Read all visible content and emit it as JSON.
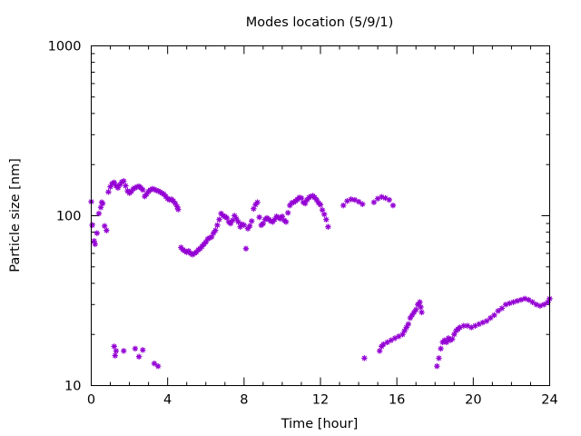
{
  "chart_data": {
    "type": "scatter",
    "title": "Modes location (5/9/1)",
    "xlabel": "Time [hour]",
    "ylabel": "Particle size [nm]",
    "xlim": [
      0,
      24
    ],
    "ylim": [
      10,
      1000
    ],
    "yscale": "log",
    "grid": false,
    "legend": "none",
    "x_ticks": [
      0,
      4,
      8,
      12,
      16,
      20,
      24
    ],
    "x_tick_labels": [
      "0",
      "4",
      "8",
      "12",
      "16",
      "20",
      "24"
    ],
    "y_ticks": [
      10,
      100,
      1000
    ],
    "y_tick_labels": [
      "10",
      "100",
      "1000"
    ],
    "color": "#9400d3",
    "series": [
      {
        "points": [
          [
            0.0,
            121
          ],
          [
            0.05,
            88
          ],
          [
            0.15,
            71
          ],
          [
            0.2,
            68
          ],
          [
            0.3,
            79
          ],
          [
            0.4,
            103
          ],
          [
            0.5,
            112
          ],
          [
            0.55,
            120
          ],
          [
            0.6,
            118
          ],
          [
            0.7,
            87
          ],
          [
            0.8,
            82
          ],
          [
            0.9,
            138
          ],
          [
            1.0,
            148
          ],
          [
            1.1,
            155
          ],
          [
            1.2,
            157
          ],
          [
            1.3,
            150
          ],
          [
            1.4,
            146
          ],
          [
            1.5,
            152
          ],
          [
            1.6,
            158
          ],
          [
            1.7,
            160
          ],
          [
            1.8,
            150
          ],
          [
            1.9,
            140
          ],
          [
            2.0,
            136
          ],
          [
            2.1,
            139
          ],
          [
            2.2,
            144
          ],
          [
            2.3,
            146
          ],
          [
            2.4,
            148
          ],
          [
            2.5,
            149
          ],
          [
            2.6,
            146
          ],
          [
            2.7,
            142
          ],
          [
            2.8,
            130
          ],
          [
            2.9,
            134
          ],
          [
            3.0,
            139
          ],
          [
            3.1,
            142
          ],
          [
            3.2,
            144
          ],
          [
            3.3,
            143
          ],
          [
            3.4,
            141
          ],
          [
            3.5,
            140
          ],
          [
            3.6,
            138
          ],
          [
            3.7,
            136
          ],
          [
            3.8,
            134
          ],
          [
            3.9,
            130
          ],
          [
            4.0,
            126
          ],
          [
            4.1,
            124
          ],
          [
            4.2,
            125
          ],
          [
            4.3,
            122
          ],
          [
            4.4,
            118
          ],
          [
            4.5,
            113
          ],
          [
            4.55,
            109
          ],
          [
            4.7,
            65
          ],
          [
            4.8,
            63
          ],
          [
            4.9,
            62
          ],
          [
            5.0,
            61
          ],
          [
            5.1,
            62
          ],
          [
            5.2,
            60
          ],
          [
            5.3,
            59
          ],
          [
            5.4,
            60
          ],
          [
            5.5,
            61
          ],
          [
            5.6,
            63
          ],
          [
            5.7,
            64
          ],
          [
            5.8,
            66
          ],
          [
            5.9,
            68
          ],
          [
            6.0,
            70
          ],
          [
            6.1,
            73
          ],
          [
            6.2,
            74
          ],
          [
            6.3,
            75
          ],
          [
            6.4,
            79
          ],
          [
            6.5,
            82
          ],
          [
            6.6,
            88
          ],
          [
            6.7,
            95
          ],
          [
            6.8,
            103
          ],
          [
            6.9,
            100
          ],
          [
            7.0,
            99
          ],
          [
            7.1,
            97
          ],
          [
            7.2,
            92
          ],
          [
            7.3,
            90
          ],
          [
            7.4,
            94
          ],
          [
            7.5,
            100
          ],
          [
            7.6,
            96
          ],
          [
            7.7,
            92
          ],
          [
            7.8,
            86
          ],
          [
            7.9,
            89
          ],
          [
            8.0,
            88
          ],
          [
            8.1,
            64
          ],
          [
            8.2,
            84
          ],
          [
            8.3,
            87
          ],
          [
            8.4,
            93
          ],
          [
            8.5,
            110
          ],
          [
            8.6,
            116
          ],
          [
            8.7,
            120
          ],
          [
            8.8,
            98
          ],
          [
            8.9,
            88
          ],
          [
            9.0,
            90
          ],
          [
            9.1,
            95
          ],
          [
            9.2,
            97
          ],
          [
            9.3,
            95
          ],
          [
            9.4,
            93
          ],
          [
            9.5,
            92
          ],
          [
            9.6,
            95
          ],
          [
            9.7,
            99
          ],
          [
            9.8,
            98
          ],
          [
            9.9,
            96
          ],
          [
            10.0,
            99
          ],
          [
            10.1,
            94
          ],
          [
            10.2,
            92
          ],
          [
            10.3,
            104
          ],
          [
            10.4,
            115
          ],
          [
            10.5,
            119
          ],
          [
            10.6,
            120
          ],
          [
            10.7,
            122
          ],
          [
            10.8,
            125
          ],
          [
            10.9,
            128
          ],
          [
            11.0,
            127
          ],
          [
            11.1,
            120
          ],
          [
            11.2,
            118
          ],
          [
            11.3,
            124
          ],
          [
            11.4,
            128
          ],
          [
            11.5,
            130
          ],
          [
            11.6,
            131
          ],
          [
            11.7,
            128
          ],
          [
            11.8,
            124
          ],
          [
            11.9,
            119
          ],
          [
            12.0,
            116
          ],
          [
            12.1,
            108
          ],
          [
            12.2,
            102
          ],
          [
            12.3,
            95
          ],
          [
            12.4,
            86
          ],
          [
            13.2,
            115
          ],
          [
            13.4,
            122
          ],
          [
            13.6,
            125
          ],
          [
            13.8,
            124
          ],
          [
            14.0,
            121
          ],
          [
            14.2,
            117
          ],
          [
            14.8,
            120
          ],
          [
            15.0,
            126
          ],
          [
            15.2,
            129
          ],
          [
            15.4,
            127
          ],
          [
            15.6,
            124
          ],
          [
            15.8,
            115
          ]
        ]
      },
      {
        "points": [
          [
            1.2,
            17
          ],
          [
            1.25,
            15
          ],
          [
            1.3,
            16
          ],
          [
            1.7,
            16
          ],
          [
            2.3,
            16.5
          ],
          [
            2.5,
            14.8
          ],
          [
            2.7,
            16.2
          ],
          [
            3.3,
            13.5
          ],
          [
            3.5,
            13.0
          ]
        ]
      },
      {
        "points": [
          [
            14.3,
            14.5
          ],
          [
            15.1,
            16
          ],
          [
            15.2,
            17
          ],
          [
            15.3,
            17.5
          ],
          [
            15.5,
            18
          ],
          [
            15.7,
            18.5
          ],
          [
            15.9,
            19
          ],
          [
            16.1,
            19.5
          ],
          [
            16.3,
            20
          ],
          [
            16.4,
            21
          ],
          [
            16.5,
            22
          ],
          [
            16.6,
            23
          ],
          [
            16.7,
            25
          ],
          [
            16.8,
            26
          ],
          [
            16.9,
            27
          ],
          [
            17.0,
            28
          ],
          [
            17.1,
            30
          ],
          [
            17.2,
            31
          ],
          [
            17.25,
            29
          ],
          [
            17.3,
            27
          ]
        ]
      },
      {
        "points": [
          [
            18.1,
            13
          ],
          [
            18.2,
            14.5
          ],
          [
            18.3,
            16.5
          ],
          [
            18.4,
            18
          ],
          [
            18.5,
            18.5
          ],
          [
            18.6,
            18
          ],
          [
            18.7,
            19
          ],
          [
            18.8,
            18.5
          ],
          [
            18.9,
            18.8
          ],
          [
            19.0,
            20
          ],
          [
            19.1,
            21
          ],
          [
            19.2,
            21.5
          ],
          [
            19.3,
            22
          ],
          [
            19.5,
            22.5
          ],
          [
            19.7,
            22.5
          ],
          [
            19.9,
            22
          ],
          [
            20.1,
            22.5
          ],
          [
            20.3,
            23
          ],
          [
            20.5,
            23.5
          ],
          [
            20.7,
            24
          ],
          [
            20.9,
            25
          ],
          [
            21.1,
            26
          ],
          [
            21.3,
            27.5
          ],
          [
            21.5,
            28.5
          ],
          [
            21.7,
            30
          ],
          [
            21.9,
            30.5
          ],
          [
            22.1,
            31
          ],
          [
            22.3,
            31.5
          ],
          [
            22.5,
            32
          ],
          [
            22.7,
            32.5
          ],
          [
            22.9,
            32
          ],
          [
            23.1,
            31
          ],
          [
            23.3,
            30
          ],
          [
            23.5,
            29.5
          ],
          [
            23.7,
            30
          ],
          [
            23.9,
            31
          ],
          [
            24.0,
            32.5
          ]
        ]
      }
    ]
  }
}
